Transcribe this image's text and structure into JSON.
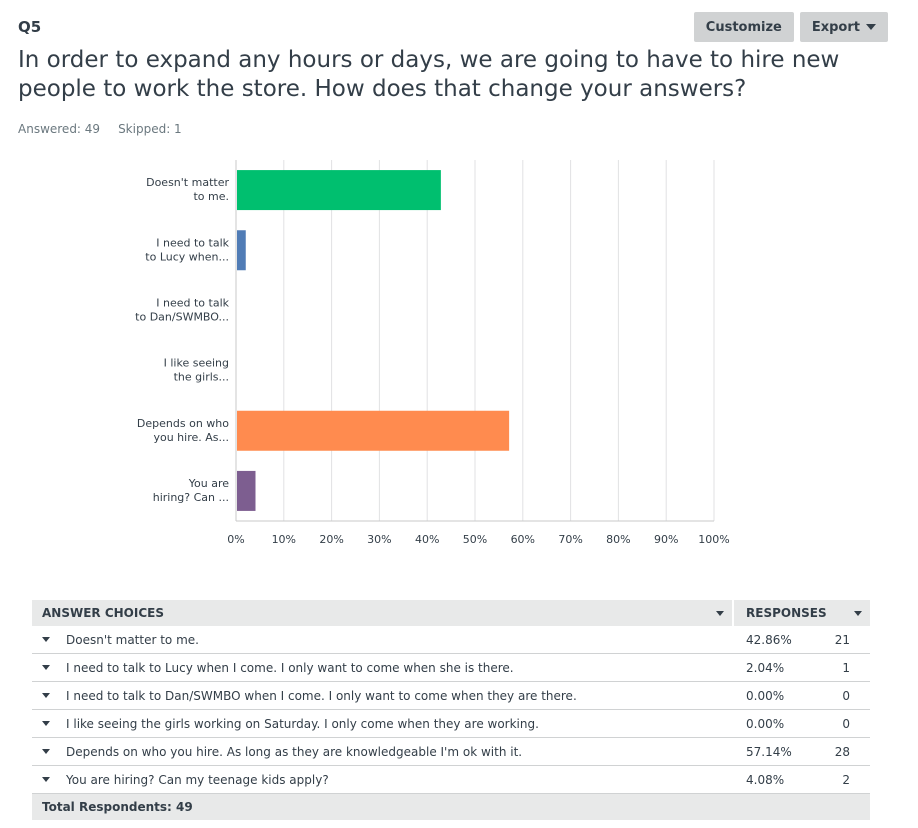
{
  "question": {
    "number": "Q5",
    "title": "In order to expand any hours or days, we are going to have to hire new people to work the store. How does that change your answers?",
    "answered": "Answered: 49",
    "skipped": "Skipped: 1"
  },
  "toolbar": {
    "customize_label": "Customize",
    "export_label": "Export"
  },
  "chart_data": {
    "type": "bar",
    "orientation": "horizontal",
    "categories": [
      [
        "Doesn't matter",
        "to me."
      ],
      [
        "I need to talk",
        "to Lucy when..."
      ],
      [
        "I need to talk",
        "to Dan/SWMBO..."
      ],
      [
        "I like seeing",
        "the girls..."
      ],
      [
        "Depends on who",
        "you hire. As..."
      ],
      [
        "You are",
        "hiring? Can ..."
      ]
    ],
    "values": [
      42.86,
      2.04,
      0.0,
      0.0,
      57.14,
      4.08
    ],
    "colors": [
      "#00bf6f",
      "#507cb6",
      "#f9be00",
      "#6bc8cd",
      "#ff8b4f",
      "#7d5e90"
    ],
    "xlim": [
      0,
      100
    ],
    "ticks": [
      "0%",
      "10%",
      "20%",
      "30%",
      "40%",
      "50%",
      "60%",
      "70%",
      "80%",
      "90%",
      "100%"
    ],
    "grid": true
  },
  "table": {
    "header_choices": "ANSWER CHOICES",
    "header_responses": "RESPONSES",
    "rows": [
      {
        "choice": "Doesn't matter to me.",
        "pct": "42.86%",
        "count": "21"
      },
      {
        "choice": "I need to talk to Lucy when I come. I only want to come when she is there.",
        "pct": "2.04%",
        "count": "1"
      },
      {
        "choice": "I need to talk to Dan/SWMBO when I come. I only want to come when they are there.",
        "pct": "0.00%",
        "count": "0"
      },
      {
        "choice": "I like seeing the girls working on Saturday. I only come when they are working.",
        "pct": "0.00%",
        "count": "0"
      },
      {
        "choice": "Depends on who you hire. As long as they are knowledgeable I'm ok with it.",
        "pct": "57.14%",
        "count": "28"
      },
      {
        "choice": "You are hiring? Can my teenage kids apply?",
        "pct": "4.08%",
        "count": "2"
      }
    ],
    "total": "Total Respondents: 49"
  }
}
